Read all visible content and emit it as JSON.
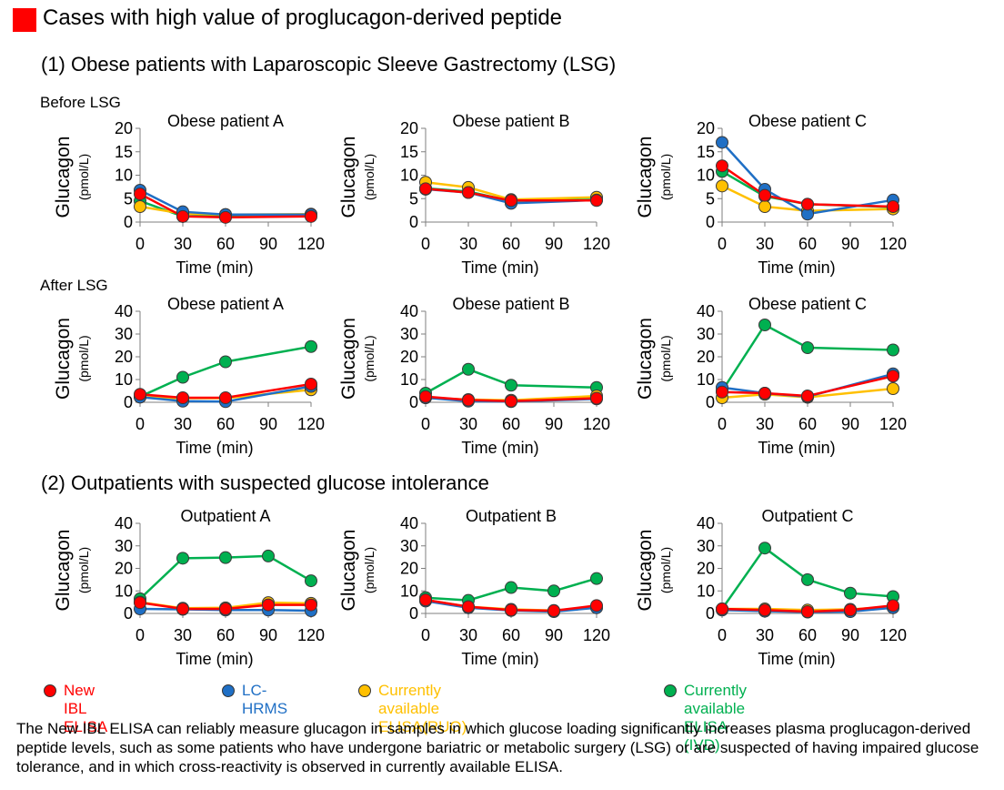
{
  "heading": {
    "text": "Cases with high value of proglucagon-derived peptide",
    "marker_color": "#ff0000"
  },
  "sections": {
    "lsg": "(1) Obese patients with Laparoscopic Sleeve Gastrectomy (LSG)",
    "outpatients": "(2) Outpatients with suspected glucose intolerance"
  },
  "row_labels": {
    "before": "Before LSG",
    "after": "After LSG"
  },
  "legend": [
    {
      "label": "New IBL ELISA",
      "color": "#ff0000"
    },
    {
      "label": "LC-HRMS",
      "color": "#1f6fc5"
    },
    {
      "label": "Currently available ELISA(RUO)",
      "color": "#ffc000"
    },
    {
      "label": "Currently available ELISA (IVD)",
      "color": "#00b050"
    }
  ],
  "footnote": "The New IBL ELISA can reliably measure glucagon in samples in which glucose loading significantly increases plasma proglucagon-derived peptide levels, such as some patients who have undergone bariatric or metabolic surgery (LSG) or are suspected of having impaired glucose tolerance, and in which cross-reactivity is observed in currently available ELISA.",
  "chart_data": [
    {
      "type": "line",
      "title": "Obese patient A",
      "group": "Before LSG",
      "xlabel": "Time (min)",
      "ylabel": "Glucagon",
      "ylabel_unit": "(pmol/L)",
      "x": [
        0,
        30,
        60,
        90,
        120
      ],
      "xlim": [
        0,
        120
      ],
      "ylim": [
        0,
        20
      ],
      "yticks": [
        0,
        5,
        10,
        15,
        20
      ],
      "series": [
        {
          "name": "Currently available ELISA (IVD)",
          "color": "#00b050",
          "x": [
            0,
            30,
            60,
            120
          ],
          "values": [
            4.5,
            1.2,
            1.5,
            1.6
          ]
        },
        {
          "name": "Currently available ELISA(RUO)",
          "color": "#ffc000",
          "x": [
            0,
            30,
            60,
            120
          ],
          "values": [
            3.3,
            1.8,
            1.6,
            1.7
          ]
        },
        {
          "name": "LC-HRMS",
          "color": "#1f6fc5",
          "x": [
            0,
            30,
            60,
            120
          ],
          "values": [
            6.8,
            2.2,
            1.6,
            1.6
          ]
        },
        {
          "name": "New IBL ELISA",
          "color": "#ff0000",
          "x": [
            0,
            30,
            60,
            120
          ],
          "values": [
            6.0,
            1.2,
            1.0,
            1.2
          ]
        }
      ]
    },
    {
      "type": "line",
      "title": "Obese patient B",
      "group": "Before LSG",
      "xlabel": "Time (min)",
      "ylabel": "Glucagon",
      "ylabel_unit": "(pmol/L)",
      "x": [
        0,
        30,
        60,
        90,
        120
      ],
      "xlim": [
        0,
        120
      ],
      "ylim": [
        0,
        20
      ],
      "yticks": [
        0,
        5,
        10,
        15,
        20
      ],
      "series": [
        {
          "name": "Currently available ELISA (IVD)",
          "color": "#00b050",
          "x": [
            0,
            30,
            60,
            120
          ],
          "values": [
            7.2,
            6.5,
            4.5,
            4.8
          ]
        },
        {
          "name": "Currently available ELISA(RUO)",
          "color": "#ffc000",
          "x": [
            0,
            30,
            60,
            120
          ],
          "values": [
            8.5,
            7.4,
            4.8,
            5.3
          ]
        },
        {
          "name": "LC-HRMS",
          "color": "#1f6fc5",
          "x": [
            0,
            30,
            60,
            120
          ],
          "values": [
            7.0,
            6.3,
            4.0,
            4.7
          ]
        },
        {
          "name": "New IBL ELISA",
          "color": "#ff0000",
          "x": [
            0,
            30,
            60,
            120
          ],
          "values": [
            7.1,
            6.3,
            4.6,
            4.6
          ]
        }
      ]
    },
    {
      "type": "line",
      "title": "Obese patient C",
      "group": "Before LSG",
      "xlabel": "Time (min)",
      "ylabel": "Glucagon",
      "ylabel_unit": "(pmol/L)",
      "x": [
        0,
        30,
        60,
        90,
        120
      ],
      "xlim": [
        0,
        120
      ],
      "ylim": [
        0,
        20
      ],
      "yticks": [
        0,
        5,
        10,
        15,
        20
      ],
      "series": [
        {
          "name": "Currently available ELISA (IVD)",
          "color": "#00b050",
          "x": [
            0,
            30,
            60,
            120
          ],
          "values": [
            10.8,
            5.5,
            3.8,
            3.2
          ]
        },
        {
          "name": "Currently available ELISA(RUO)",
          "color": "#ffc000",
          "x": [
            0,
            30,
            60,
            120
          ],
          "values": [
            7.7,
            3.3,
            2.4,
            2.8
          ]
        },
        {
          "name": "LC-HRMS",
          "color": "#1f6fc5",
          "x": [
            0,
            30,
            60,
            120
          ],
          "values": [
            17.0,
            7.0,
            1.7,
            4.7
          ]
        },
        {
          "name": "New IBL ELISA",
          "color": "#ff0000",
          "x": [
            0,
            30,
            60,
            120
          ],
          "values": [
            12.0,
            5.7,
            3.8,
            3.3
          ]
        }
      ]
    },
    {
      "type": "line",
      "title": "Obese patient A",
      "group": "After LSG",
      "xlabel": "Time (min)",
      "ylabel": "Glucagon",
      "ylabel_unit": "(pmol/L)",
      "x": [
        0,
        30,
        60,
        90,
        120
      ],
      "xlim": [
        0,
        120
      ],
      "ylim": [
        0,
        40
      ],
      "yticks": [
        0,
        10,
        20,
        30,
        40
      ],
      "series": [
        {
          "name": "Currently available ELISA (IVD)",
          "color": "#00b050",
          "x": [
            0,
            30,
            60,
            120
          ],
          "values": [
            2.5,
            11.0,
            17.8,
            24.5
          ]
        },
        {
          "name": "Currently available ELISA(RUO)",
          "color": "#ffc000",
          "x": [
            0,
            30,
            60,
            120
          ],
          "values": [
            2.3,
            1.8,
            1.8,
            5.5
          ]
        },
        {
          "name": "LC-HRMS",
          "color": "#1f6fc5",
          "x": [
            0,
            30,
            60,
            120
          ],
          "values": [
            2.3,
            0.5,
            0.3,
            7.0
          ]
        },
        {
          "name": "New IBL ELISA",
          "color": "#ff0000",
          "x": [
            0,
            30,
            60,
            120
          ],
          "values": [
            3.5,
            2.0,
            2.0,
            8.0
          ]
        }
      ]
    },
    {
      "type": "line",
      "title": "Obese patient B",
      "group": "After LSG",
      "xlabel": "Time (min)",
      "ylabel": "Glucagon",
      "ylabel_unit": "(pmol/L)",
      "x": [
        0,
        30,
        60,
        90,
        120
      ],
      "xlim": [
        0,
        120
      ],
      "ylim": [
        0,
        40
      ],
      "yticks": [
        0,
        10,
        20,
        30,
        40
      ],
      "series": [
        {
          "name": "Currently available ELISA (IVD)",
          "color": "#00b050",
          "x": [
            0,
            30,
            60,
            120
          ],
          "values": [
            4.0,
            14.5,
            7.5,
            6.5
          ]
        },
        {
          "name": "Currently available ELISA(RUO)",
          "color": "#ffc000",
          "x": [
            0,
            30,
            60,
            120
          ],
          "values": [
            2.0,
            1.2,
            0.9,
            2.8
          ]
        },
        {
          "name": "LC-HRMS",
          "color": "#1f6fc5",
          "x": [
            0,
            30,
            60,
            120
          ],
          "values": [
            2.0,
            0.5,
            0.3,
            1.5
          ]
        },
        {
          "name": "New IBL ELISA",
          "color": "#ff0000",
          "x": [
            0,
            30,
            60,
            120
          ],
          "values": [
            2.5,
            1.0,
            0.5,
            1.8
          ]
        }
      ]
    },
    {
      "type": "line",
      "title": "Obese patient C",
      "group": "After LSG",
      "xlabel": "Time (min)",
      "ylabel": "Glucagon",
      "ylabel_unit": "(pmol/L)",
      "x": [
        0,
        30,
        60,
        90,
        120
      ],
      "xlim": [
        0,
        120
      ],
      "ylim": [
        0,
        40
      ],
      "yticks": [
        0,
        10,
        20,
        30,
        40
      ],
      "series": [
        {
          "name": "Currently available ELISA (IVD)",
          "color": "#00b050",
          "x": [
            0,
            30,
            60,
            120
          ],
          "values": [
            5.0,
            34.0,
            24.0,
            23.0
          ]
        },
        {
          "name": "Currently available ELISA(RUO)",
          "color": "#ffc000",
          "x": [
            0,
            30,
            60,
            120
          ],
          "values": [
            2.0,
            3.5,
            2.2,
            6.0
          ]
        },
        {
          "name": "LC-HRMS",
          "color": "#1f6fc5",
          "x": [
            0,
            30,
            60,
            120
          ],
          "values": [
            6.5,
            4.0,
            2.5,
            12.5
          ]
        },
        {
          "name": "New IBL ELISA",
          "color": "#ff0000",
          "x": [
            0,
            30,
            60,
            120
          ],
          "values": [
            4.5,
            4.0,
            2.8,
            11.5
          ]
        }
      ]
    },
    {
      "type": "line",
      "title": "Outpatient A",
      "group": "Outpatients with suspected glucose intolerance",
      "xlabel": "Time (min)",
      "ylabel": "Glucagon",
      "ylabel_unit": "(pmol/L)",
      "x": [
        0,
        30,
        60,
        90,
        120
      ],
      "xlim": [
        0,
        120
      ],
      "ylim": [
        0,
        40
      ],
      "yticks": [
        0,
        10,
        20,
        30,
        40
      ],
      "series": [
        {
          "name": "Currently available ELISA (IVD)",
          "color": "#00b050",
          "x": [
            0,
            30,
            60,
            90,
            120
          ],
          "values": [
            6.5,
            24.5,
            24.8,
            25.5,
            14.5
          ]
        },
        {
          "name": "Currently available ELISA(RUO)",
          "color": "#ffc000",
          "x": [
            0,
            30,
            60,
            90,
            120
          ],
          "values": [
            5.0,
            2.3,
            2.5,
            4.8,
            4.5
          ]
        },
        {
          "name": "LC-HRMS",
          "color": "#1f6fc5",
          "x": [
            0,
            30,
            60,
            90,
            120
          ],
          "values": [
            2.0,
            1.8,
            1.5,
            1.5,
            1.2
          ]
        },
        {
          "name": "New IBL ELISA",
          "color": "#ff0000",
          "x": [
            0,
            30,
            60,
            90,
            120
          ],
          "values": [
            4.8,
            2.0,
            2.0,
            3.8,
            3.8
          ]
        }
      ]
    },
    {
      "type": "line",
      "title": "Outpatient B",
      "group": "Outpatients with suspected glucose intolerance",
      "xlabel": "Time (min)",
      "ylabel": "Glucagon",
      "ylabel_unit": "(pmol/L)",
      "x": [
        0,
        30,
        60,
        90,
        120
      ],
      "xlim": [
        0,
        120
      ],
      "ylim": [
        0,
        40
      ],
      "yticks": [
        0,
        10,
        20,
        30,
        40
      ],
      "series": [
        {
          "name": "Currently available ELISA (IVD)",
          "color": "#00b050",
          "x": [
            0,
            30,
            60,
            90,
            120
          ],
          "values": [
            7.0,
            5.8,
            11.5,
            10.0,
            15.5
          ]
        },
        {
          "name": "Currently available ELISA(RUO)",
          "color": "#ffc000",
          "x": [
            0,
            30,
            60,
            90,
            120
          ],
          "values": [
            6.0,
            3.0,
            1.8,
            1.3,
            2.8
          ]
        },
        {
          "name": "LC-HRMS",
          "color": "#1f6fc5",
          "x": [
            0,
            30,
            60,
            90,
            120
          ],
          "values": [
            5.5,
            2.5,
            1.3,
            0.8,
            2.5
          ]
        },
        {
          "name": "New IBL ELISA",
          "color": "#ff0000",
          "x": [
            0,
            30,
            60,
            90,
            120
          ],
          "values": [
            6.0,
            3.0,
            1.5,
            1.2,
            3.5
          ]
        }
      ]
    },
    {
      "type": "line",
      "title": "Outpatient C",
      "group": "Outpatients with suspected glucose intolerance",
      "xlabel": "Time (min)",
      "ylabel": "Glucagon",
      "ylabel_unit": "(pmol/L)",
      "x": [
        0,
        30,
        60,
        90,
        120
      ],
      "xlim": [
        0,
        120
      ],
      "ylim": [
        0,
        40
      ],
      "yticks": [
        0,
        10,
        20,
        30,
        40
      ],
      "series": [
        {
          "name": "Currently available ELISA (IVD)",
          "color": "#00b050",
          "x": [
            0,
            30,
            60,
            90,
            120
          ],
          "values": [
            2.0,
            29.0,
            15.0,
            9.0,
            7.5
          ]
        },
        {
          "name": "Currently available ELISA(RUO)",
          "color": "#ffc000",
          "x": [
            0,
            30,
            60,
            90,
            120
          ],
          "values": [
            2.0,
            2.0,
            1.5,
            1.8,
            3.0
          ]
        },
        {
          "name": "LC-HRMS",
          "color": "#1f6fc5",
          "x": [
            0,
            30,
            60,
            90,
            120
          ],
          "values": [
            1.5,
            1.0,
            0.6,
            0.8,
            2.5
          ]
        },
        {
          "name": "New IBL ELISA",
          "color": "#ff0000",
          "x": [
            0,
            30,
            60,
            90,
            120
          ],
          "values": [
            2.0,
            1.5,
            0.8,
            1.5,
            3.5
          ]
        }
      ]
    }
  ]
}
